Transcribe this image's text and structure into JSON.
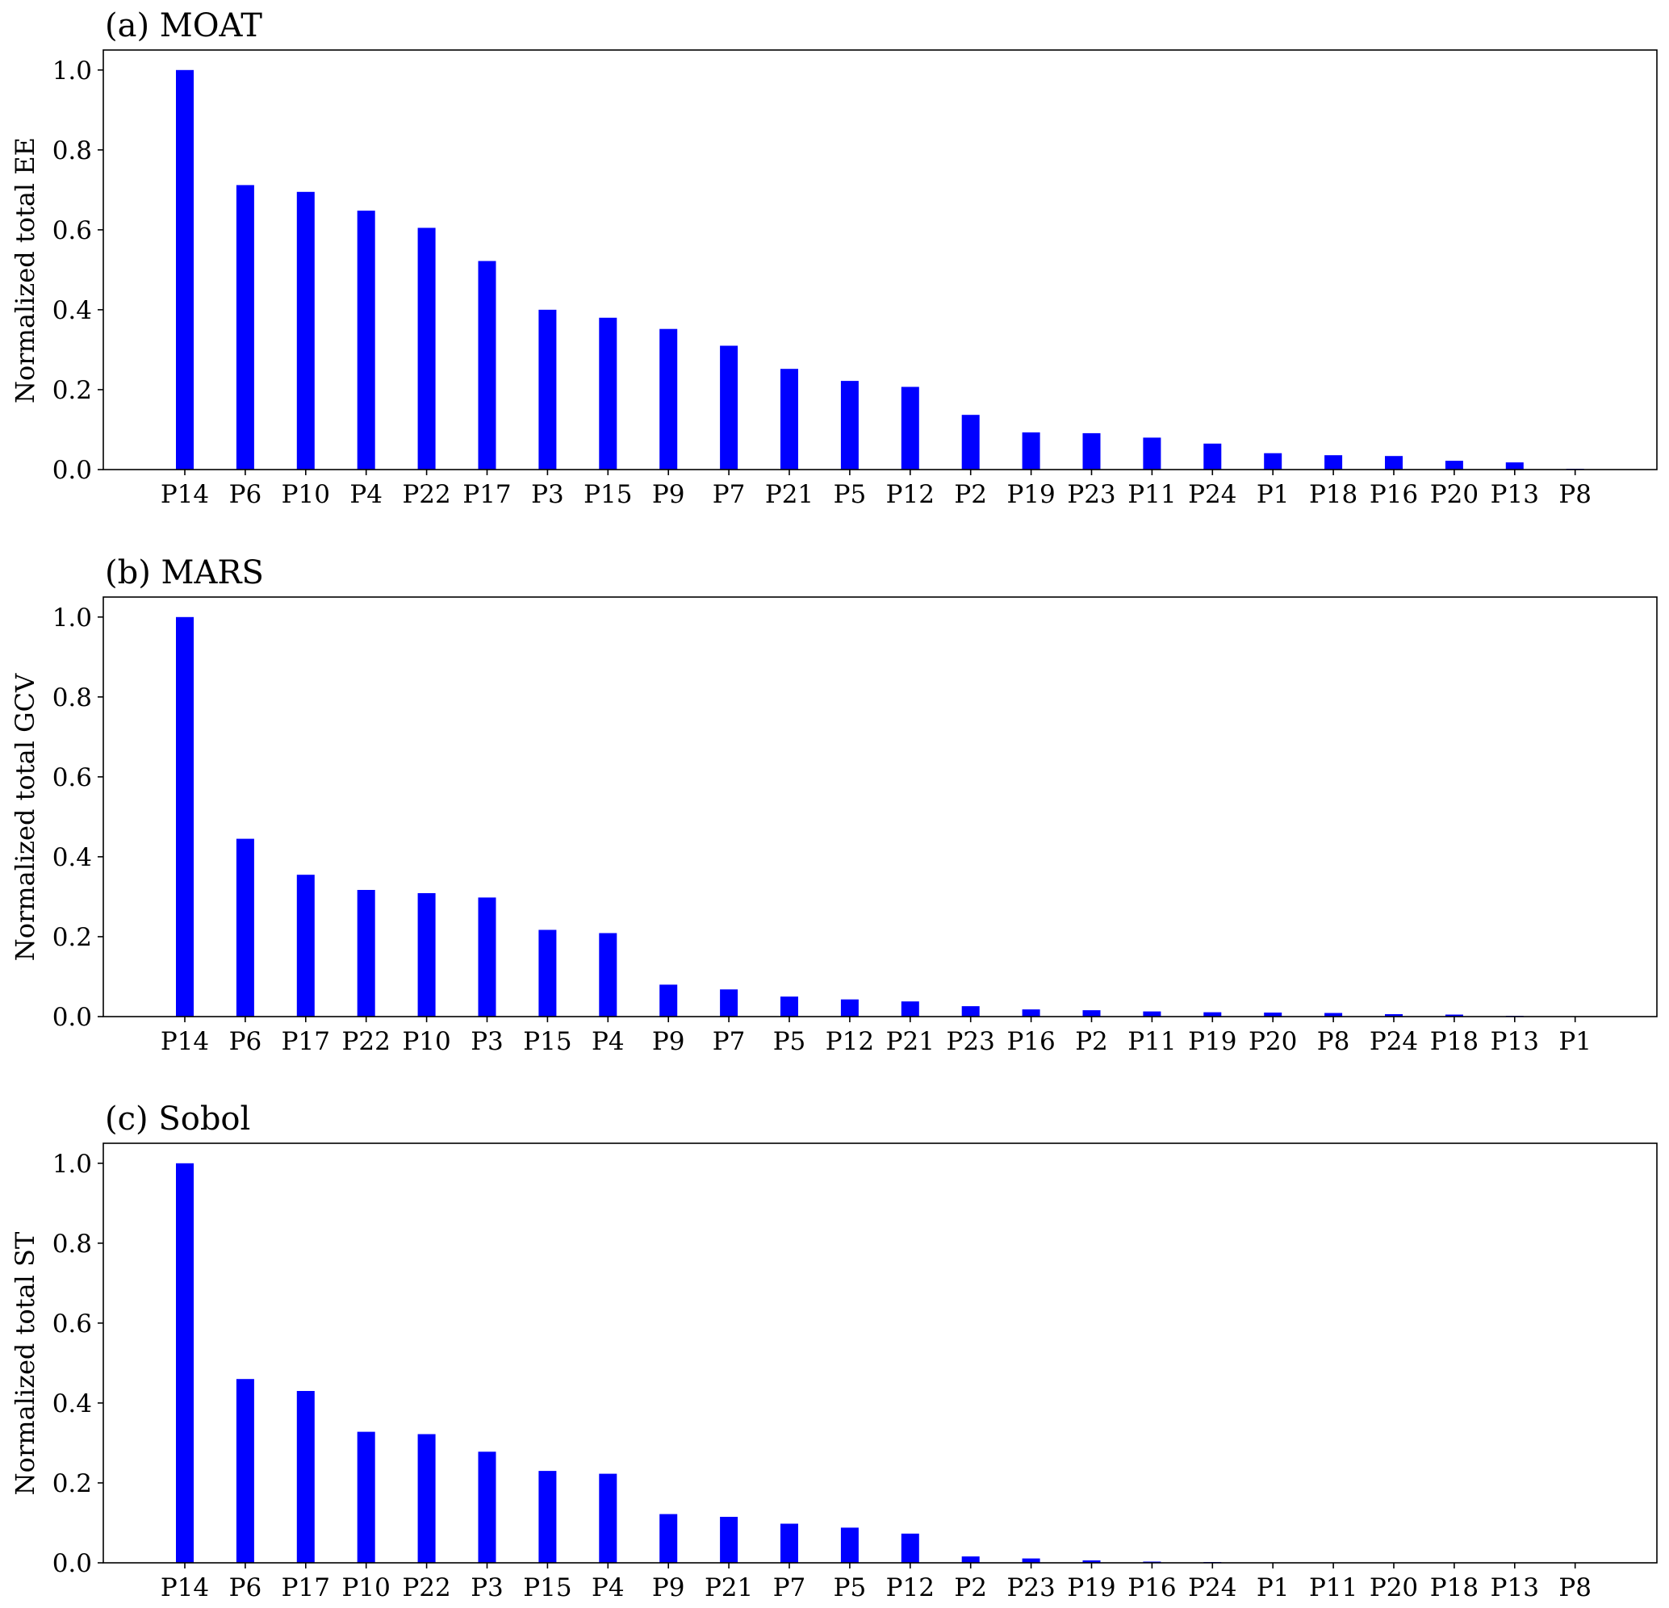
{
  "chart_data": [
    {
      "type": "bar",
      "title": "(a) MOAT",
      "xlabel": "",
      "ylabel": "Normalized total EE",
      "ylim": [
        0,
        1.05
      ],
      "yticks": [
        "0.0",
        "0.2",
        "0.4",
        "0.6",
        "0.8",
        "1.0"
      ],
      "grid": false,
      "bar_color": "#0000ff",
      "categories": [
        "P14",
        "P6",
        "P10",
        "P4",
        "P22",
        "P17",
        "P3",
        "P15",
        "P9",
        "P7",
        "P21",
        "P5",
        "P12",
        "P2",
        "P19",
        "P23",
        "P11",
        "P24",
        "P1",
        "P18",
        "P16",
        "P20",
        "P13",
        "P8"
      ],
      "values": [
        1.0,
        0.712,
        0.695,
        0.648,
        0.605,
        0.522,
        0.4,
        0.38,
        0.352,
        0.31,
        0.252,
        0.222,
        0.207,
        0.137,
        0.093,
        0.091,
        0.08,
        0.065,
        0.041,
        0.036,
        0.034,
        0.022,
        0.018,
        0.002
      ]
    },
    {
      "type": "bar",
      "title": "(b) MARS",
      "xlabel": "",
      "ylabel": "Normalized total GCV",
      "ylim": [
        0,
        1.05
      ],
      "yticks": [
        "0.0",
        "0.2",
        "0.4",
        "0.6",
        "0.8",
        "1.0"
      ],
      "grid": false,
      "bar_color": "#0000ff",
      "categories": [
        "P14",
        "P6",
        "P17",
        "P22",
        "P10",
        "P3",
        "P15",
        "P4",
        "P9",
        "P7",
        "P5",
        "P12",
        "P21",
        "P23",
        "P16",
        "P2",
        "P11",
        "P19",
        "P20",
        "P8",
        "P24",
        "P18",
        "P13",
        "P1"
      ],
      "values": [
        1.0,
        0.445,
        0.355,
        0.317,
        0.309,
        0.298,
        0.217,
        0.209,
        0.08,
        0.068,
        0.05,
        0.043,
        0.038,
        0.026,
        0.018,
        0.016,
        0.013,
        0.011,
        0.01,
        0.009,
        0.006,
        0.005,
        0.002,
        0.001
      ]
    },
    {
      "type": "bar",
      "title": "(c) Sobol",
      "xlabel": "",
      "ylabel": "Normalized total ST",
      "ylim": [
        0,
        1.05
      ],
      "yticks": [
        "0.0",
        "0.2",
        "0.4",
        "0.6",
        "0.8",
        "1.0"
      ],
      "grid": false,
      "bar_color": "#0000ff",
      "categories": [
        "P14",
        "P6",
        "P17",
        "P10",
        "P22",
        "P3",
        "P15",
        "P4",
        "P9",
        "P21",
        "P7",
        "P5",
        "P12",
        "P2",
        "P23",
        "P19",
        "P16",
        "P24",
        "P1",
        "P11",
        "P20",
        "P18",
        "P13",
        "P8"
      ],
      "values": [
        1.0,
        0.46,
        0.43,
        0.328,
        0.322,
        0.278,
        0.23,
        0.223,
        0.122,
        0.115,
        0.098,
        0.088,
        0.073,
        0.016,
        0.011,
        0.006,
        0.003,
        0.002,
        0.001,
        0.001,
        0.001,
        0.001,
        0.001,
        0.001
      ]
    }
  ]
}
